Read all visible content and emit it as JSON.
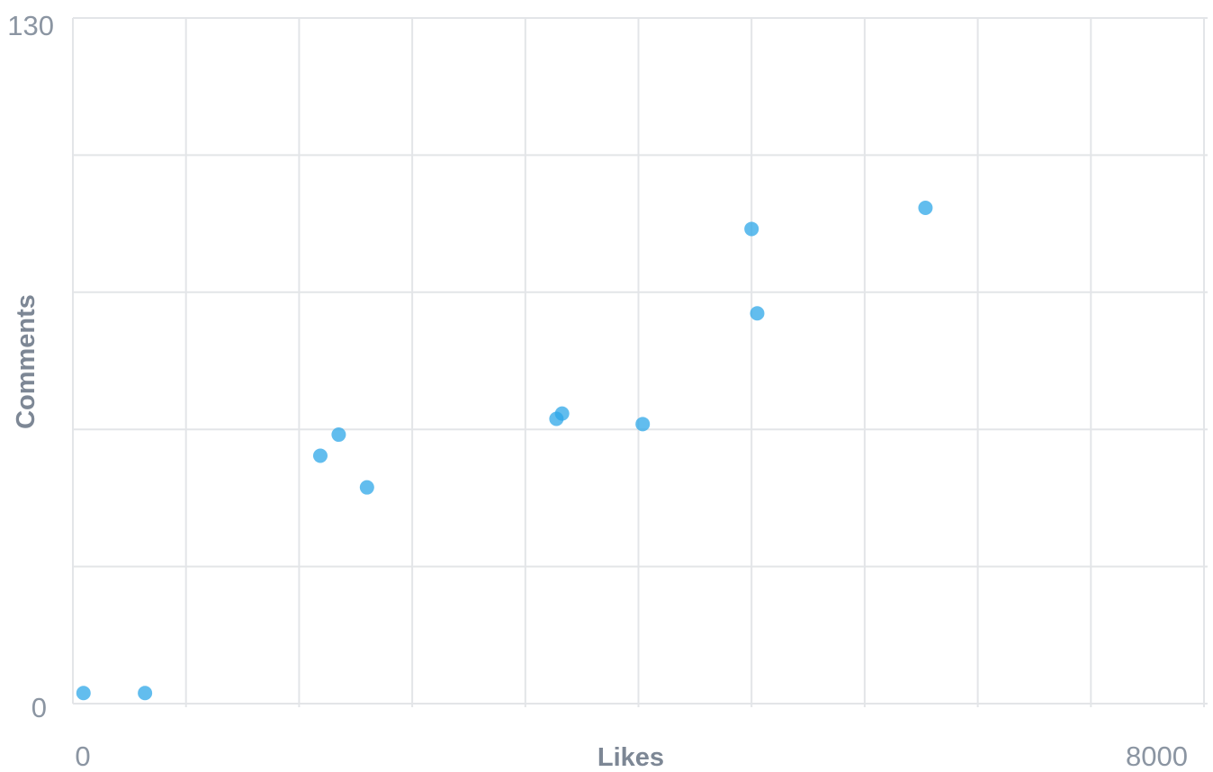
{
  "chart_data": {
    "type": "scatter",
    "title": "",
    "xlabel": "Likes",
    "ylabel": "Comments",
    "xlim": [
      0,
      8000
    ],
    "ylim": [
      0,
      130
    ],
    "x_ticks_labeled": [
      "0",
      "8000"
    ],
    "y_ticks_labeled": [
      "130",
      "0"
    ],
    "x_gridlines": [
      800,
      1600,
      2400,
      3200,
      4000,
      4800,
      5600,
      6400,
      7200,
      8000
    ],
    "y_gridlines": [
      26,
      52,
      78,
      104,
      130
    ],
    "grid": true,
    "legend": "none",
    "colors": {
      "point": "#2ea7e8",
      "grid": "#e3e5e8",
      "tick_text": "#8b95a2",
      "axis_title": "#7d8795"
    },
    "series": [
      {
        "points": [
          {
            "x": 75,
            "y": 2
          },
          {
            "x": 510,
            "y": 2
          },
          {
            "x": 1750,
            "y": 47
          },
          {
            "x": 1880,
            "y": 51
          },
          {
            "x": 2080,
            "y": 41
          },
          {
            "x": 3420,
            "y": 54
          },
          {
            "x": 3460,
            "y": 55
          },
          {
            "x": 4030,
            "y": 53
          },
          {
            "x": 4800,
            "y": 90
          },
          {
            "x": 4840,
            "y": 74
          },
          {
            "x": 6030,
            "y": 94
          }
        ]
      }
    ]
  }
}
